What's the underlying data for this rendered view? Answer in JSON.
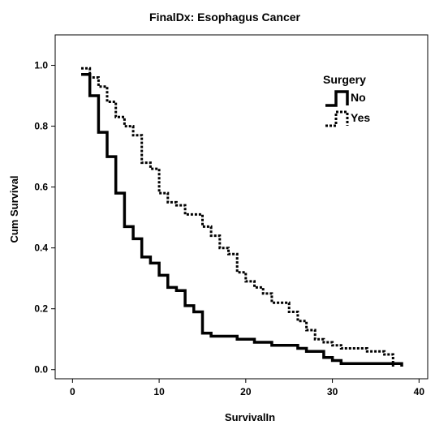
{
  "chart_data": {
    "type": "line",
    "step": true,
    "title": "FinalDx: Esophagus Cancer",
    "xlabel": "SurvivalIn",
    "ylabel": "Cum Survival",
    "xlim": [
      -2,
      41
    ],
    "ylim": [
      -0.03,
      1.1
    ],
    "xticks": [
      0,
      10,
      20,
      30,
      40
    ],
    "yticks": [
      0.0,
      0.2,
      0.4,
      0.6,
      0.8,
      1.0
    ],
    "xtick_labels": [
      "0",
      "10",
      "20",
      "30",
      "40"
    ],
    "ytick_labels": [
      "0.0",
      "0.2",
      "0.4",
      "0.6",
      "0.8",
      "1.0"
    ],
    "grid": false,
    "legend": {
      "title": "Surgery",
      "position": "top-right"
    },
    "series": [
      {
        "name": "No",
        "style": "solid",
        "x": [
          1.0,
          2.0,
          3.0,
          4.0,
          5.0,
          6.0,
          7.0,
          8.0,
          9.0,
          10.0,
          11.0,
          12.0,
          13.0,
          14.0,
          15.0,
          16.0,
          19.0,
          21.0,
          23.0,
          26.0,
          27.0,
          29.0,
          30.0,
          31.0,
          37.0,
          38.0
        ],
        "y": [
          0.97,
          0.9,
          0.78,
          0.7,
          0.58,
          0.47,
          0.43,
          0.37,
          0.35,
          0.31,
          0.27,
          0.26,
          0.21,
          0.19,
          0.12,
          0.11,
          0.1,
          0.09,
          0.08,
          0.07,
          0.06,
          0.04,
          0.03,
          0.02,
          0.02,
          0.01
        ]
      },
      {
        "name": "Yes",
        "style": "dotted",
        "x": [
          1.0,
          2.0,
          3.0,
          4.0,
          5.0,
          6.0,
          7.0,
          8.0,
          9.0,
          10.0,
          11.0,
          12.0,
          13.0,
          15.0,
          16.0,
          17.0,
          18.0,
          19.0,
          20.0,
          21.0,
          22.0,
          23.0,
          25.0,
          26.0,
          27.0,
          28.0,
          29.0,
          30.0,
          31.0,
          34.0,
          36.0,
          37.0
        ],
        "y": [
          0.99,
          0.96,
          0.93,
          0.88,
          0.83,
          0.8,
          0.77,
          0.68,
          0.66,
          0.58,
          0.55,
          0.54,
          0.51,
          0.47,
          0.44,
          0.4,
          0.38,
          0.32,
          0.29,
          0.27,
          0.25,
          0.22,
          0.19,
          0.16,
          0.13,
          0.1,
          0.09,
          0.08,
          0.07,
          0.06,
          0.05,
          0.01
        ]
      }
    ]
  }
}
